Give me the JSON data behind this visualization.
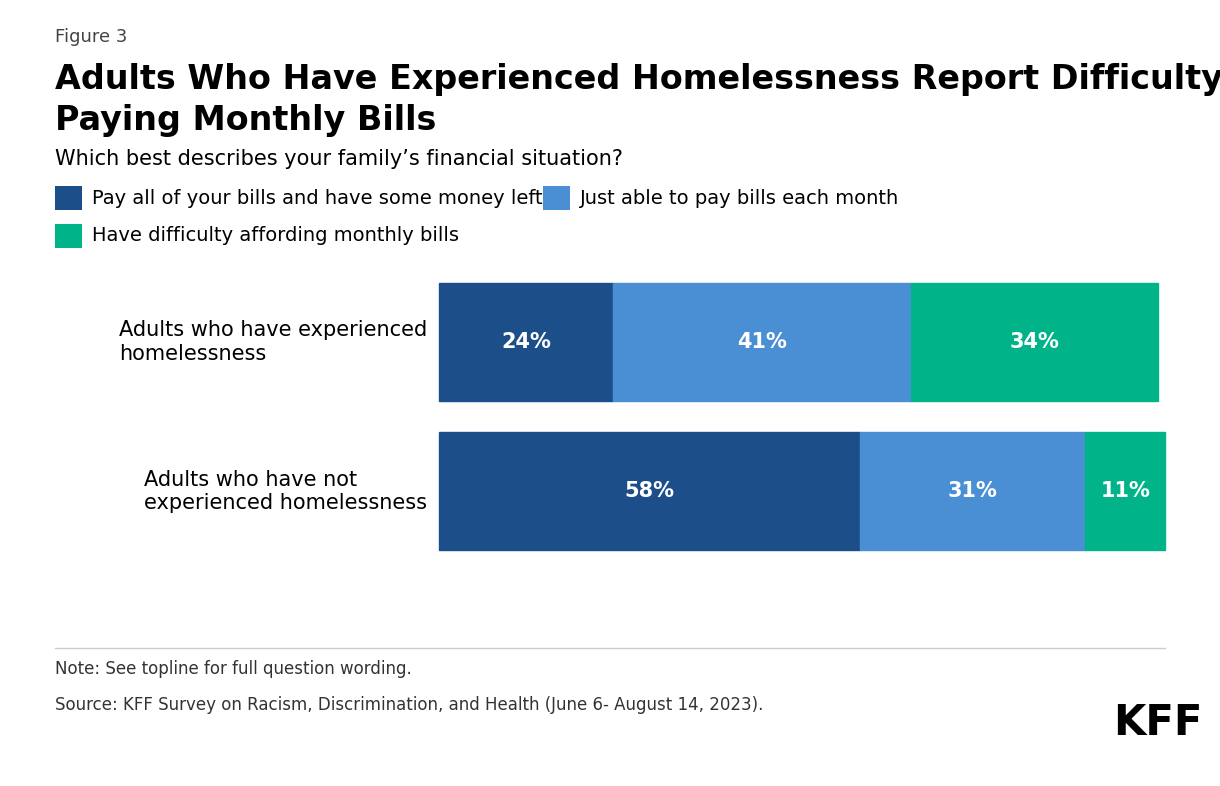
{
  "figure_label": "Figure 3",
  "title_line1": "Adults Who Have Experienced Homelessness Report Difficulty",
  "title_line2": "Paying Monthly Bills",
  "subtitle": "Which best describes your family’s financial situation?",
  "legend_items": [
    {
      "label": "Pay all of your bills and have some money left",
      "color": "#1c4f8a"
    },
    {
      "label": "Just able to pay bills each month",
      "color": "#4a8fd4"
    },
    {
      "label": "Have difficulty affording monthly bills",
      "color": "#00b389"
    }
  ],
  "categories": [
    "Adults who have experienced\nhomelessness",
    "Adults who have not\nexperienced homelessness"
  ],
  "values": [
    [
      24,
      41,
      34
    ],
    [
      58,
      31,
      11
    ]
  ],
  "bar_colors": [
    "#1c4f8a",
    "#4a8fd4",
    "#00b389"
  ],
  "note": "Note: See topline for full question wording.",
  "source": "Source: KFF Survey on Racism, Discrimination, and Health (June 6- August 14, 2023).",
  "background_color": "#ffffff",
  "text_color": "#000000",
  "bar_label_color_dark": "#ffffff",
  "bar_label_color_light": "#000000",
  "bar_label_fontsize": 15,
  "title_fontsize": 24,
  "subtitle_fontsize": 15,
  "legend_fontsize": 14,
  "category_fontsize": 15,
  "note_fontsize": 12,
  "kff_fontsize": 30,
  "figure_label_fontsize": 13
}
